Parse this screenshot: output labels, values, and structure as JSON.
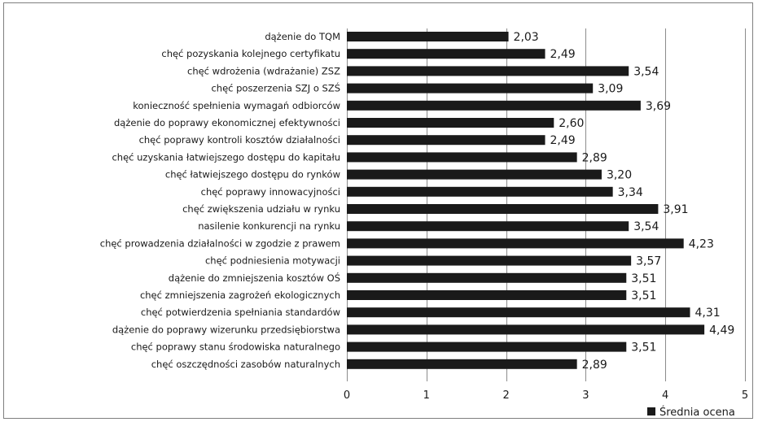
{
  "chart_data": {
    "type": "bar",
    "orientation": "horizontal",
    "categories": [
      "dążenie do  TQM",
      "chęć pozyskania kolejnego certyfikatu",
      "chęć wdrożenia (wdrażanie) ZSZ",
      "chęć poszerzenia SZJ o SZŚ",
      "konieczność spełnienia wymagań odbiorców",
      "dążenie do poprawy ekonomicznej efektywności",
      "chęć poprawy kontroli kosztów działalności",
      "chęć uzyskania łatwiejszego dostępu do kapitału",
      "chęć łatwiejszego dostępu do rynków",
      "chęć poprawy innowacyjności",
      "chęć zwiększenia udziału w rynku",
      "nasilenie konkurencji na rynku",
      "chęć prowadzenia działalności w  zgodzie z prawem",
      "chęć podniesienia motywacji",
      "dążenie do zmniejszenia kosztów OŚ",
      "chęć zmniejszenia zagrożeń ekologicznych",
      "chęć potwierdzenia spełniania  standardów",
      "dążenie do poprawy wizerunku przedsiębiorstwa",
      "chęć poprawy stanu środowiska naturalnego",
      "chęć oszczędności zasobów naturalnych"
    ],
    "series": [
      {
        "name": "Średnia ocena",
        "values": [
          2.03,
          2.49,
          3.54,
          3.09,
          3.69,
          2.6,
          2.49,
          2.89,
          3.2,
          3.34,
          3.91,
          3.54,
          4.23,
          3.57,
          3.51,
          3.51,
          4.31,
          4.49,
          3.51,
          2.89
        ],
        "value_labels": [
          "2,03",
          "2,49",
          "3,54",
          "3,09",
          "3,69",
          "2,60",
          "2,49",
          "2,89",
          "3,20",
          "3,34",
          "3,91",
          "3,54",
          "4,23",
          "3,57",
          "3,51",
          "3,51",
          "4,31",
          "4,49",
          "3,51",
          "2,89"
        ],
        "color": "#1a1a1a"
      }
    ],
    "xlim": [
      0,
      5
    ],
    "x_ticks": [
      0,
      1,
      2,
      3,
      4,
      5
    ],
    "x_tick_labels": [
      "0",
      "1",
      "2",
      "3",
      "4",
      "5"
    ],
    "grid": "vertical",
    "legend_placement": "bottom-right"
  }
}
